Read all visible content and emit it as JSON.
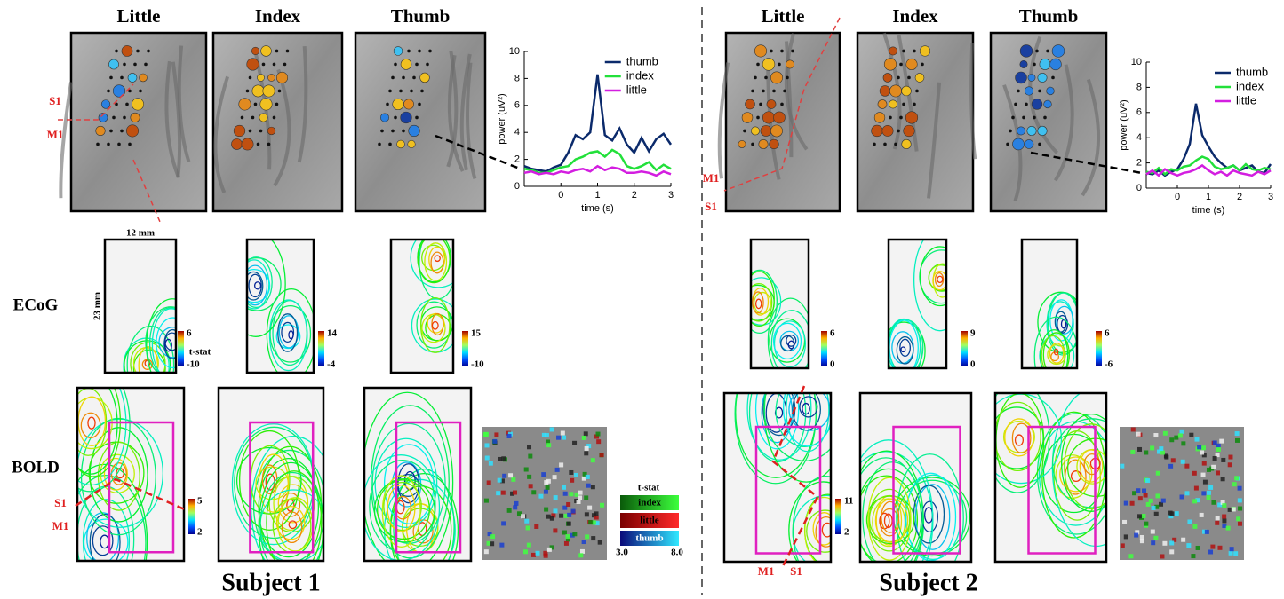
{
  "subjects": [
    {
      "title": "Subject 1",
      "fingers": [
        "Little",
        "Index",
        "Thumb"
      ],
      "ecog_colorbars": [
        [
          "6",
          "-10"
        ],
        [
          "14",
          "-4"
        ],
        [
          "15",
          "-10"
        ]
      ],
      "bold_colorbar": [
        "5",
        "2"
      ],
      "areas": [
        "S1",
        "M1"
      ],
      "power_plot": {
        "type": "line",
        "xlabel": "time (s)",
        "ylabel": "power (uV²)",
        "x": [
          -1,
          -0.8,
          -0.6,
          -0.4,
          -0.2,
          0,
          0.2,
          0.4,
          0.6,
          0.8,
          1,
          1.2,
          1.4,
          1.6,
          1.8,
          2,
          2.2,
          2.4,
          2.6,
          2.8,
          3
        ],
        "xlim": [
          -1,
          3
        ],
        "xticks": [
          0,
          1,
          2,
          3
        ],
        "ylim": [
          0,
          10
        ],
        "yticks": [
          0,
          2,
          4,
          6,
          8,
          10
        ],
        "series": [
          {
            "name": "thumb",
            "color": "#0b2a6b",
            "values": [
              1.5,
              1.3,
              1.2,
              1.1,
              1.4,
              1.6,
              2.5,
              3.8,
              3.5,
              4,
              8.3,
              3.8,
              3.4,
              4.3,
              3.1,
              2.5,
              3.6,
              2.6,
              3.5,
              3.9,
              3.1
            ]
          },
          {
            "name": "index",
            "color": "#22e03a",
            "values": [
              1.3,
              1.2,
              1,
              1,
              1.2,
              1.4,
              1.5,
              2,
              2.2,
              2.5,
              2.6,
              2.2,
              2.7,
              2.4,
              1.5,
              1.3,
              1.5,
              1.8,
              1.2,
              1.6,
              1.3
            ]
          },
          {
            "name": "little",
            "color": "#d31ee0",
            "values": [
              1,
              1.1,
              0.9,
              1,
              0.9,
              1.1,
              1,
              1.2,
              1.3,
              1.1,
              1.5,
              1.2,
              1.4,
              1.3,
              1,
              1,
              1.1,
              1,
              0.8,
              1.1,
              0.9
            ]
          }
        ]
      }
    },
    {
      "title": "Subject 2",
      "fingers": [
        "Little",
        "Index",
        "Thumb"
      ],
      "ecog_colorbars": [
        [
          "6",
          "0"
        ],
        [
          "9",
          "0"
        ],
        [
          "6",
          "-6"
        ]
      ],
      "bold_colorbar": [
        "11",
        "2"
      ],
      "areas": [
        "S1",
        "M1"
      ],
      "power_plot": {
        "type": "line",
        "xlabel": "time (s)",
        "ylabel": "power (uV²)",
        "x": [
          -1,
          -0.8,
          -0.6,
          -0.4,
          -0.2,
          0,
          0.2,
          0.4,
          0.6,
          0.8,
          1,
          1.2,
          1.4,
          1.6,
          1.8,
          2,
          2.2,
          2.4,
          2.6,
          2.8,
          3
        ],
        "xlim": [
          -1,
          3
        ],
        "xticks": [
          0,
          1,
          2,
          3
        ],
        "ylim": [
          0,
          10
        ],
        "yticks": [
          0,
          2,
          4,
          6,
          8,
          10
        ],
        "series": [
          {
            "name": "thumb",
            "color": "#0b2a6b",
            "values": [
              1.2,
              1.1,
              1.4,
              1,
              1.3,
              1.5,
              2.3,
              3.5,
              6.7,
              4.2,
              3.3,
              2.5,
              2,
              1.6,
              1.8,
              1.4,
              1.6,
              1.8,
              1.3,
              1.2,
              1.9
            ]
          },
          {
            "name": "index",
            "color": "#22e03a",
            "values": [
              1.3,
              1.2,
              1.6,
              1.1,
              1.5,
              1.4,
              1.7,
              1.8,
              2.2,
              2.5,
              2.3,
              1.7,
              1.5,
              1.6,
              1.8,
              1.4,
              1.9,
              1.5,
              1.4,
              1.6,
              1.5
            ]
          },
          {
            "name": "little",
            "color": "#d31ee0",
            "values": [
              1.1,
              1.4,
              1,
              1.5,
              1.2,
              1,
              1.2,
              1.3,
              1.5,
              1.8,
              1.4,
              1.1,
              1.3,
              1,
              1.4,
              1.2,
              1.1,
              1,
              1.3,
              1.1,
              1.4
            ]
          }
        ]
      }
    }
  ],
  "rows": [
    "ECoG",
    "BOLD"
  ],
  "ecog_scale": {
    "width": "12 mm",
    "height": "23 mm",
    "stat": "t-stat"
  },
  "bold_legend": {
    "title": "t-stat",
    "entries": [
      "index",
      "little",
      "thumb"
    ],
    "range": [
      "3.0",
      "8.0"
    ]
  }
}
